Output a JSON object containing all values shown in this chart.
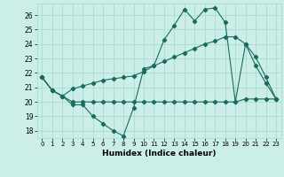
{
  "title": "",
  "xlabel": "Humidex (Indice chaleur)",
  "bg_color": "#cceee8",
  "grid_color": "#aaddcc",
  "line_color": "#1a6b5e",
  "xlim": [
    -0.5,
    23.5
  ],
  "ylim": [
    17.5,
    26.8
  ],
  "xticks": [
    0,
    1,
    2,
    3,
    4,
    5,
    6,
    7,
    8,
    9,
    10,
    11,
    12,
    13,
    14,
    15,
    16,
    17,
    18,
    19,
    20,
    21,
    22,
    23
  ],
  "yticks": [
    18,
    19,
    20,
    21,
    22,
    23,
    24,
    25,
    26
  ],
  "line1_x": [
    0,
    1,
    2,
    3,
    4,
    5,
    6,
    7,
    8,
    9,
    10,
    11,
    12,
    13,
    14,
    15,
    16,
    17,
    18,
    19,
    20,
    21,
    22,
    23
  ],
  "line1_y": [
    21.7,
    20.8,
    20.4,
    19.8,
    19.8,
    19.0,
    18.5,
    18.0,
    17.65,
    19.6,
    22.3,
    22.5,
    24.3,
    25.3,
    26.4,
    25.6,
    26.4,
    26.5,
    25.5,
    20.0,
    24.0,
    22.5,
    21.3,
    20.2
  ],
  "line2_x": [
    0,
    1,
    2,
    3,
    4,
    5,
    6,
    7,
    8,
    9,
    10,
    11,
    12,
    13,
    14,
    15,
    16,
    17,
    18,
    19,
    20,
    21,
    22,
    23
  ],
  "line2_y": [
    21.7,
    20.8,
    20.4,
    20.9,
    21.1,
    21.3,
    21.5,
    21.6,
    21.7,
    21.8,
    22.1,
    22.5,
    22.8,
    23.1,
    23.4,
    23.7,
    24.0,
    24.2,
    24.5,
    24.5,
    24.0,
    23.1,
    21.7,
    20.2
  ],
  "line3_x": [
    0,
    1,
    2,
    3,
    4,
    5,
    6,
    7,
    8,
    9,
    10,
    11,
    12,
    13,
    14,
    15,
    16,
    17,
    18,
    19,
    20,
    21,
    22,
    23
  ],
  "line3_y": [
    21.7,
    20.8,
    20.4,
    20.0,
    20.0,
    20.0,
    20.0,
    20.0,
    20.0,
    20.0,
    20.0,
    20.0,
    20.0,
    20.0,
    20.0,
    20.0,
    20.0,
    20.0,
    20.0,
    20.0,
    20.2,
    20.2,
    20.2,
    20.2
  ]
}
